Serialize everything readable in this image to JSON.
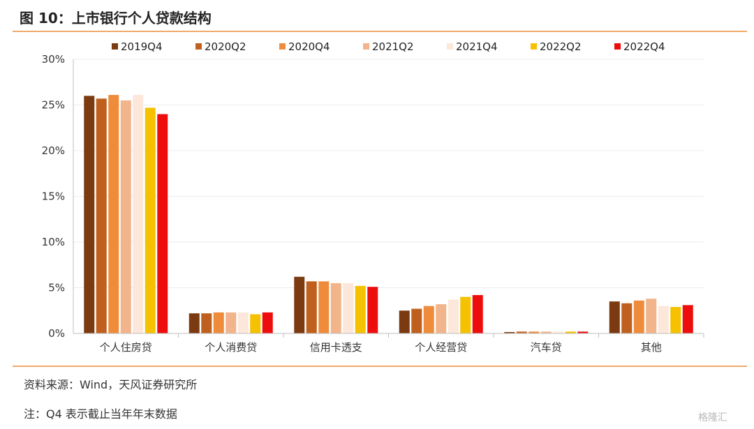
{
  "page": {
    "title": "图 10：上市银行个人贷款结构",
    "source": "资料来源：Wind，天风证券研究所",
    "note": "注：Q4 表示截止当年年末数据",
    "watermark": "格隆汇"
  },
  "chart_data": {
    "type": "bar",
    "title": "",
    "xlabel": "",
    "ylabel": "",
    "ylim": [
      0,
      30
    ],
    "yticks": [
      "0%",
      "5%",
      "10%",
      "15%",
      "20%",
      "25%",
      "30%"
    ],
    "grid": true,
    "legend_position": "top",
    "categories": [
      "个人住房贷",
      "个人消费贷",
      "信用卡透支",
      "个人经营贷",
      "汽车贷",
      "其他"
    ],
    "series": [
      {
        "name": "2019Q4",
        "color": "#7b3a10",
        "values": [
          26.0,
          2.2,
          6.2,
          2.5,
          0.15,
          3.5
        ]
      },
      {
        "name": "2020Q2",
        "color": "#c0601e",
        "values": [
          25.7,
          2.2,
          5.7,
          2.7,
          0.2,
          3.3
        ]
      },
      {
        "name": "2020Q4",
        "color": "#ee8c3c",
        "values": [
          26.1,
          2.3,
          5.7,
          3.0,
          0.2,
          3.6
        ]
      },
      {
        "name": "2021Q2",
        "color": "#f2b48a",
        "values": [
          25.5,
          2.3,
          5.5,
          3.2,
          0.2,
          3.8
        ]
      },
      {
        "name": "2021Q4",
        "color": "#fce7da",
        "values": [
          26.1,
          2.3,
          5.5,
          3.7,
          0.2,
          3.0
        ]
      },
      {
        "name": "2022Q2",
        "color": "#f5c100",
        "values": [
          24.7,
          2.1,
          5.2,
          4.0,
          0.2,
          2.9
        ]
      },
      {
        "name": "2022Q4",
        "color": "#ee0d0d",
        "values": [
          24.0,
          2.3,
          5.1,
          4.2,
          0.2,
          3.1
        ]
      }
    ]
  }
}
